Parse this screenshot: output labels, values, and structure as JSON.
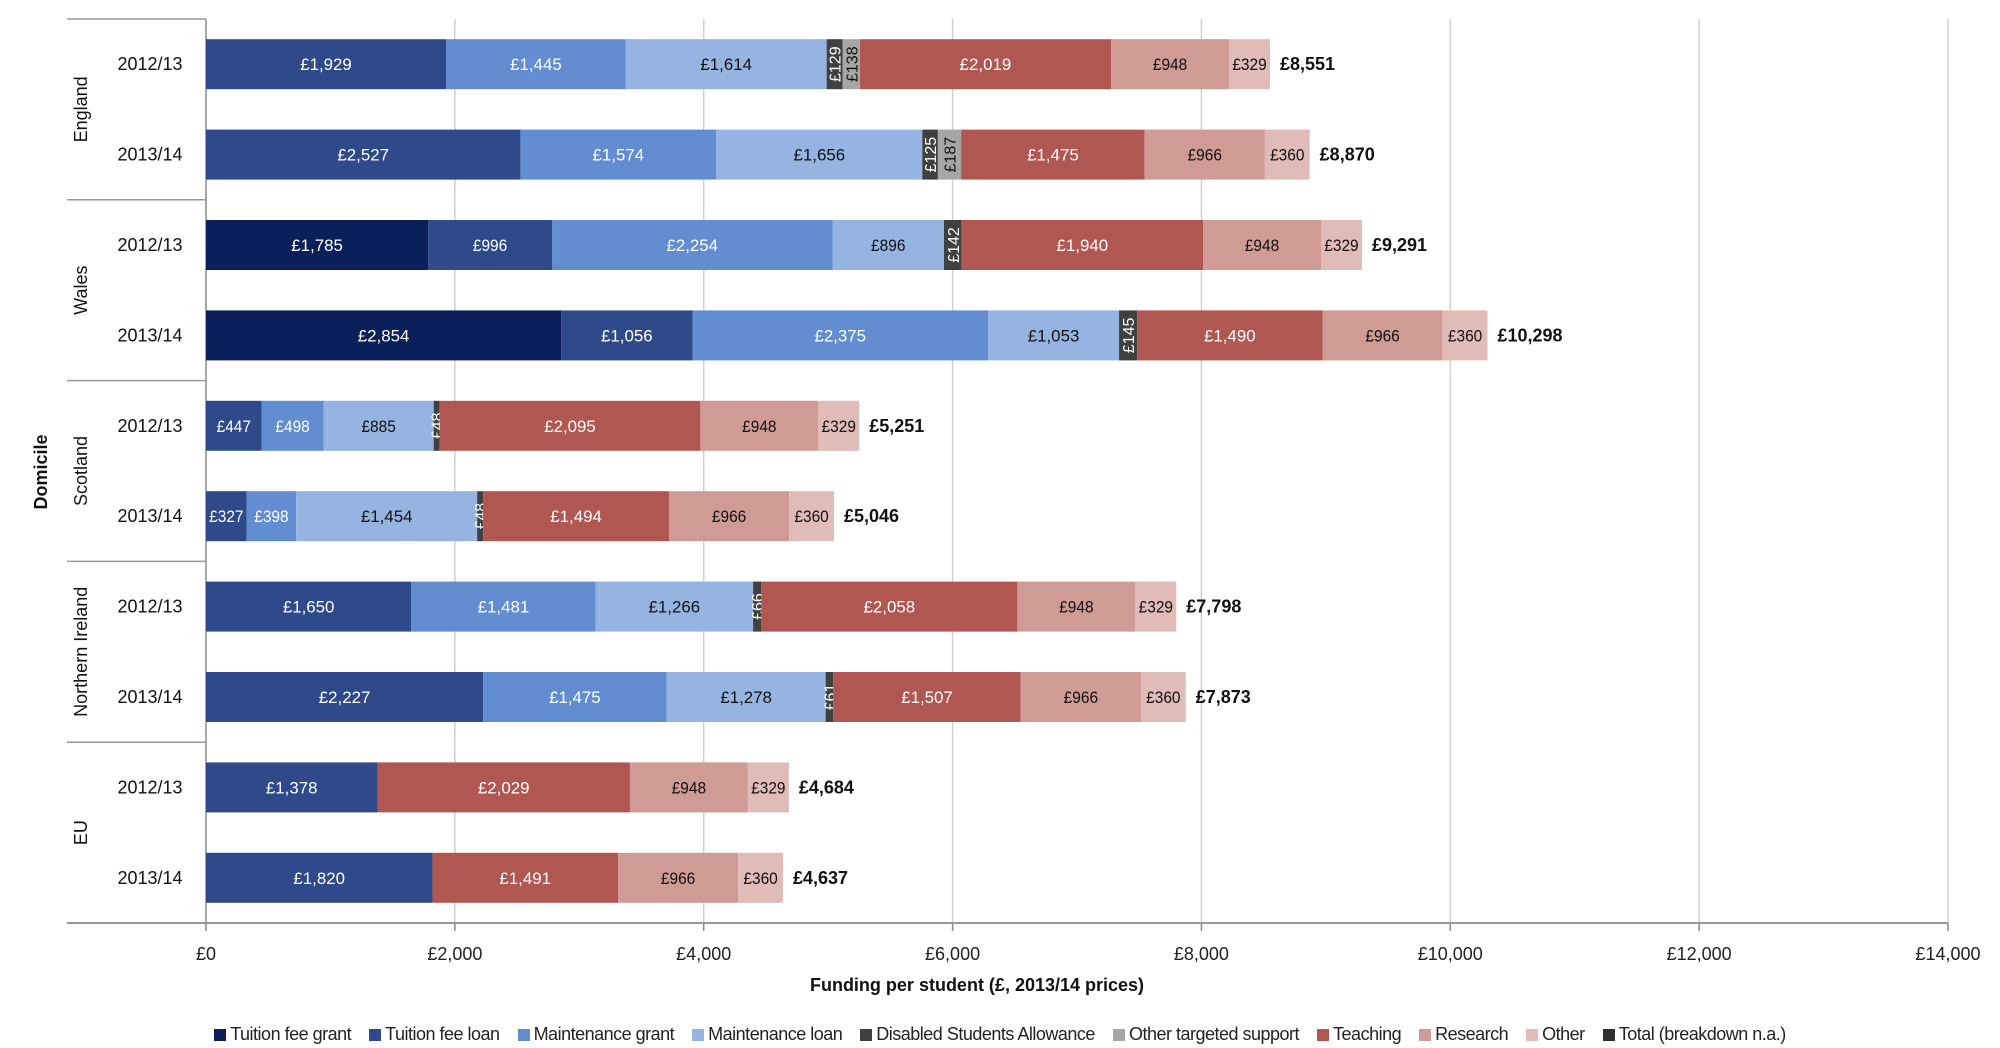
{
  "chart_data": {
    "type": "bar",
    "orientation": "horizontal-stacked",
    "xlabel": "Funding per student (£, 2013/14 prices)",
    "ylabel": "Domicile",
    "xlim": [
      0,
      14000
    ],
    "xticks": [
      0,
      2000,
      4000,
      6000,
      8000,
      10000,
      12000,
      14000
    ],
    "xtick_labels": [
      "£0",
      "£2,000",
      "£4,000",
      "£6,000",
      "£8,000",
      "£10,000",
      "£12,000",
      "£14,000"
    ],
    "grid": true,
    "legend_position": "bottom",
    "groups": [
      {
        "name": "England",
        "rows": [
          {
            "year": "2012/13",
            "values": [
              0,
              1929,
              1445,
              1614,
              129,
              138,
              2019,
              948,
              329,
              0
            ],
            "total": "£8,551"
          },
          {
            "year": "2013/14",
            "values": [
              0,
              2527,
              1574,
              1656,
              125,
              187,
              1475,
              966,
              360,
              0
            ],
            "total": "£8,870"
          }
        ]
      },
      {
        "name": "Wales",
        "rows": [
          {
            "year": "2012/13",
            "values": [
              1785,
              996,
              2254,
              896,
              142,
              0,
              1940,
              948,
              329,
              0
            ],
            "total": "£9,291"
          },
          {
            "year": "2013/14",
            "values": [
              2854,
              1056,
              2375,
              1053,
              145,
              0,
              1490,
              966,
              360,
              0
            ],
            "total": "£10,298"
          }
        ]
      },
      {
        "name": "Scotland",
        "rows": [
          {
            "year": "2012/13",
            "values": [
              0,
              447,
              498,
              885,
              48,
              0,
              2095,
              948,
              329,
              0
            ],
            "total": "£5,251"
          },
          {
            "year": "2013/14",
            "values": [
              0,
              327,
              398,
              1454,
              48,
              0,
              1494,
              966,
              360,
              0
            ],
            "total": "£5,046"
          }
        ]
      },
      {
        "name": "Northern Ireland",
        "rows": [
          {
            "year": "2012/13",
            "values": [
              0,
              1650,
              1481,
              1266,
              66,
              0,
              2058,
              948,
              329,
              0
            ],
            "total": "£7,798"
          },
          {
            "year": "2013/14",
            "values": [
              0,
              2227,
              1475,
              1278,
              61,
              0,
              1507,
              966,
              360,
              0
            ],
            "total": "£7,873"
          }
        ]
      },
      {
        "name": "EU",
        "rows": [
          {
            "year": "2012/13",
            "values": [
              0,
              1378,
              0,
              0,
              0,
              0,
              2029,
              948,
              329,
              0
            ],
            "total": "£4,684"
          },
          {
            "year": "2013/14",
            "values": [
              0,
              1820,
              0,
              0,
              0,
              0,
              1491,
              966,
              360,
              0
            ],
            "total": "£4,637"
          }
        ]
      }
    ],
    "series": [
      {
        "name": "Tuition fee grant",
        "color": "#0b1f5a",
        "label_color": "#ffffff"
      },
      {
        "name": "Tuition fee loan",
        "color": "#2e4a8b",
        "label_color": "#ffffff"
      },
      {
        "name": "Maintenance grant",
        "color": "#628dd0",
        "label_color": "#ffffff"
      },
      {
        "name": "Maintenance loan",
        "color": "#95b4e1",
        "label_color": "#111111"
      },
      {
        "name": "Disabled Students Allowance",
        "color": "#404040",
        "label_color": "#ffffff"
      },
      {
        "name": "Other targeted support",
        "color": "#a6a6a6",
        "label_color": "#111111"
      },
      {
        "name": "Teaching",
        "color": "#b05752",
        "label_color": "#ffffff"
      },
      {
        "name": "Research",
        "color": "#d09a95",
        "label_color": "#111111"
      },
      {
        "name": "Other",
        "color": "#e1bbb7",
        "label_color": "#111111"
      },
      {
        "name": "Total (breakdown n.a.)",
        "color": "#303030",
        "label_color": "#ffffff"
      }
    ]
  }
}
